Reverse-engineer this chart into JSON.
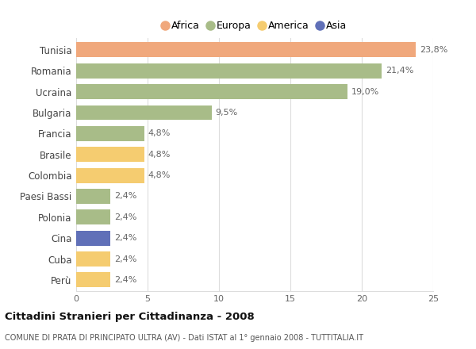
{
  "categories": [
    "Tunisia",
    "Romania",
    "Ucraina",
    "Bulgaria",
    "Francia",
    "Brasile",
    "Colombia",
    "Paesi Bassi",
    "Polonia",
    "Cina",
    "Cuba",
    "Perù"
  ],
  "values": [
    23.8,
    21.4,
    19.0,
    9.5,
    4.8,
    4.8,
    4.8,
    2.4,
    2.4,
    2.4,
    2.4,
    2.4
  ],
  "labels": [
    "23,8%",
    "21,4%",
    "19,0%",
    "9,5%",
    "4,8%",
    "4,8%",
    "4,8%",
    "2,4%",
    "2,4%",
    "2,4%",
    "2,4%",
    "2,4%"
  ],
  "colors": [
    "#F0A87C",
    "#A8BC88",
    "#A8BC88",
    "#A8BC88",
    "#A8BC88",
    "#F5CC70",
    "#F5CC70",
    "#A8BC88",
    "#A8BC88",
    "#6070B8",
    "#F5CC70",
    "#F5CC70"
  ],
  "legend": [
    {
      "label": "Africa",
      "color": "#F0A87C"
    },
    {
      "label": "Europa",
      "color": "#A8BC88"
    },
    {
      "label": "America",
      "color": "#F5CC70"
    },
    {
      "label": "Asia",
      "color": "#6070B8"
    }
  ],
  "xlim": [
    0,
    25
  ],
  "xticks": [
    0,
    5,
    10,
    15,
    20,
    25
  ],
  "title": "Cittadini Stranieri per Cittadinanza - 2008",
  "subtitle": "COMUNE DI PRATA DI PRINCIPATO ULTRA (AV) - Dati ISTAT al 1° gennaio 2008 - TUTTITALIA.IT",
  "bg_color": "#FFFFFF",
  "grid_color": "#DDDDDD",
  "bar_height": 0.72
}
